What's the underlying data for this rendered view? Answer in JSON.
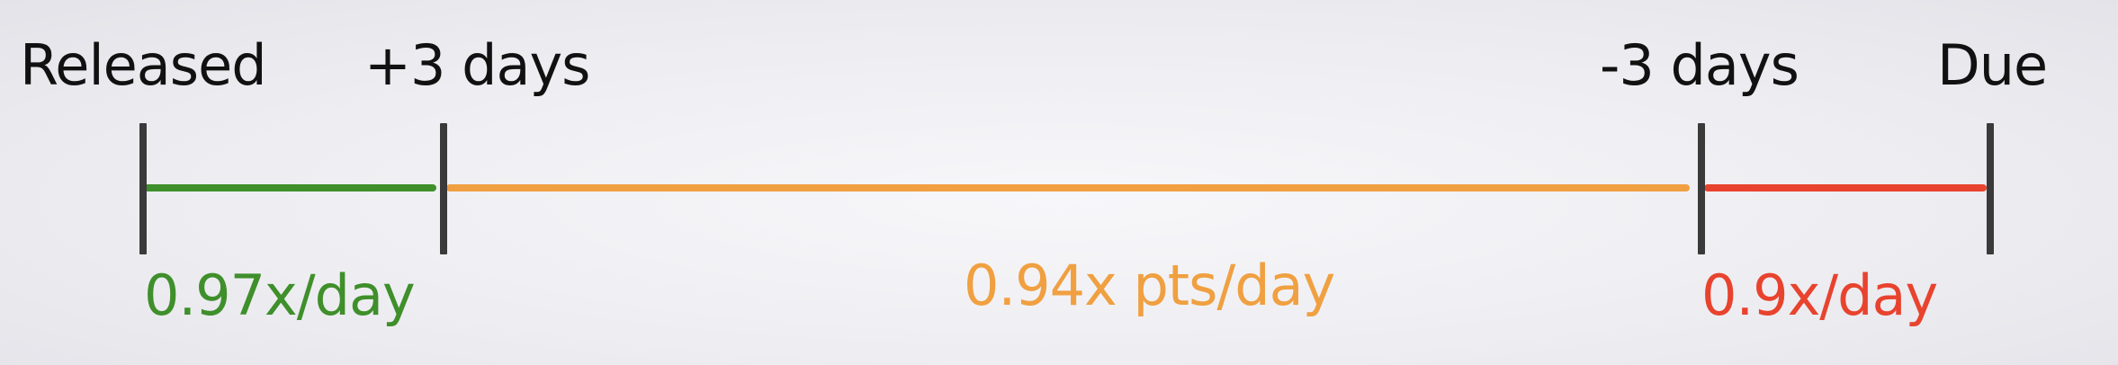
{
  "milestones": {
    "released": "Released",
    "plus_three": "+3 days",
    "minus_three": "-3 days",
    "due": "Due"
  },
  "rates": {
    "early": "0.97x/day",
    "middle": "0.94x pts/day",
    "late": "0.9x/day"
  },
  "colors": {
    "early": "#3f8f2b",
    "middle": "#f0a041",
    "late": "#e8432e",
    "tick": "#3a3a3a",
    "text": "#111111"
  }
}
